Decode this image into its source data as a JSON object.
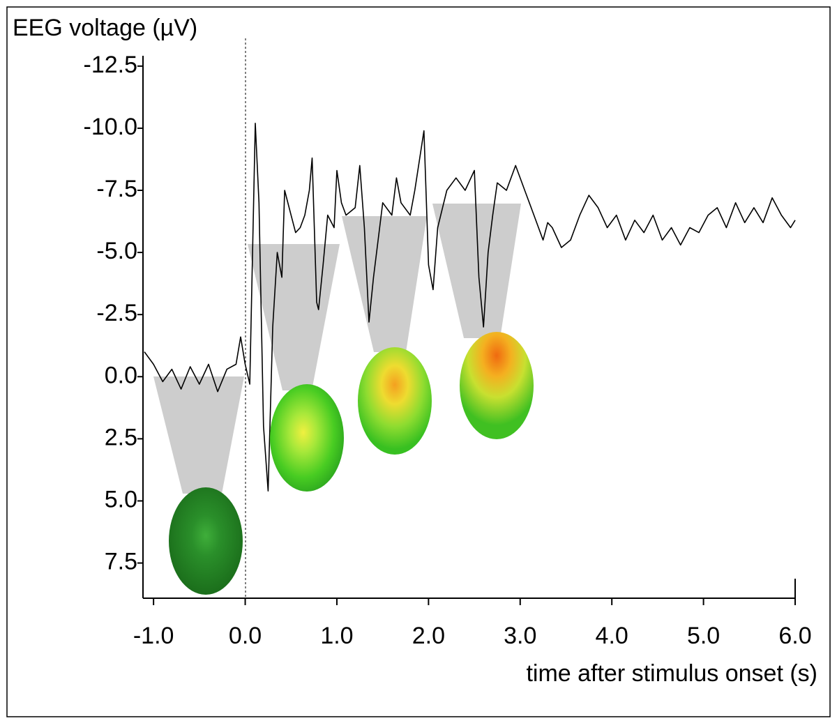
{
  "chart_data": {
    "type": "line",
    "y_label": "EEG voltage (µV)",
    "x_label": "time after stimulus onset (s)",
    "color": "#000000",
    "y_inverted": true,
    "x": [
      -1.1,
      -1.0,
      -0.9,
      -0.8,
      -0.7,
      -0.6,
      -0.5,
      -0.4,
      -0.3,
      -0.2,
      -0.1,
      -0.05,
      0.0,
      0.05,
      0.11,
      0.15,
      0.2,
      0.25,
      0.3,
      0.35,
      0.4,
      0.43,
      0.5,
      0.55,
      0.6,
      0.65,
      0.7,
      0.73,
      0.78,
      0.8,
      0.85,
      0.9,
      0.97,
      1.0,
      1.05,
      1.1,
      1.2,
      1.25,
      1.3,
      1.35,
      1.4,
      1.45,
      1.5,
      1.6,
      1.65,
      1.7,
      1.8,
      1.85,
      1.95,
      2.0,
      2.05,
      2.1,
      2.2,
      2.3,
      2.4,
      2.5,
      2.55,
      2.6,
      2.65,
      2.7,
      2.75,
      2.85,
      2.95,
      3.05,
      3.15,
      3.25,
      3.3,
      3.35,
      3.45,
      3.55,
      3.65,
      3.75,
      3.85,
      3.95,
      4.05,
      4.15,
      4.25,
      4.35,
      4.45,
      4.55,
      4.65,
      4.75,
      4.85,
      4.95,
      5.05,
      5.15,
      5.25,
      5.35,
      5.45,
      5.55,
      5.65,
      5.75,
      5.85,
      5.95,
      6.0
    ],
    "values": [
      -1.0,
      -0.5,
      0.2,
      -0.3,
      0.5,
      -0.4,
      0.3,
      -0.5,
      0.6,
      -0.3,
      -0.5,
      -1.6,
      -0.5,
      0.3,
      -10.2,
      -7,
      2,
      4.6,
      -2,
      -5,
      -4,
      -7.5,
      -6.5,
      -5.8,
      -6,
      -6.5,
      -7.5,
      -8.8,
      -3,
      -2.7,
      -4.5,
      -6.5,
      -6,
      -8.3,
      -7,
      -6.5,
      -6.8,
      -8.5,
      -6,
      -2.2,
      -4,
      -5.5,
      -7,
      -6.5,
      -8,
      -7,
      -6.5,
      -7.5,
      -9.9,
      -4.5,
      -3.5,
      -6,
      -7.5,
      -8,
      -7.5,
      -8.3,
      -4,
      -2,
      -5,
      -6.5,
      -7.8,
      -7.5,
      -8.5,
      -7.5,
      -6.5,
      -5.5,
      -6.2,
      -6,
      -5.2,
      -5.5,
      -6.5,
      -7.3,
      -6.8,
      -6,
      -6.5,
      -5.5,
      -6.3,
      -5.8,
      -6.5,
      -5.5,
      -6,
      -5.3,
      -6,
      -5.8,
      -6.5,
      -6.8,
      -6,
      -7,
      -6.2,
      -6.8,
      -6.2,
      -7.2,
      -6.5,
      -6,
      -6.3
    ],
    "xlim": [
      -1.1,
      6.0
    ],
    "ylim": [
      -13,
      9
    ],
    "xticks": [
      {
        "value": -1,
        "label": "-1.0"
      },
      {
        "value": 0,
        "label": "0.0"
      },
      {
        "value": 1,
        "label": "1.0"
      },
      {
        "value": 2,
        "label": "2.0"
      },
      {
        "value": 3,
        "label": "3.0"
      },
      {
        "value": 4,
        "label": "4.0"
      },
      {
        "value": 5,
        "label": "5.0"
      },
      {
        "value": 6,
        "label": "6.0"
      }
    ],
    "yticks": [
      {
        "value": -12.5,
        "label": "-12.5"
      },
      {
        "value": -10,
        "label": "-10.0"
      },
      {
        "value": -7.5,
        "label": "-7.5"
      },
      {
        "value": -5,
        "label": "-5.0"
      },
      {
        "value": -2.5,
        "label": "-2.5"
      },
      {
        "value": 0,
        "label": "0.0"
      },
      {
        "value": 2.5,
        "label": "2.5"
      },
      {
        "value": 5,
        "label": "5.0"
      },
      {
        "value": 7.5,
        "label": "7.5"
      }
    ]
  }
}
